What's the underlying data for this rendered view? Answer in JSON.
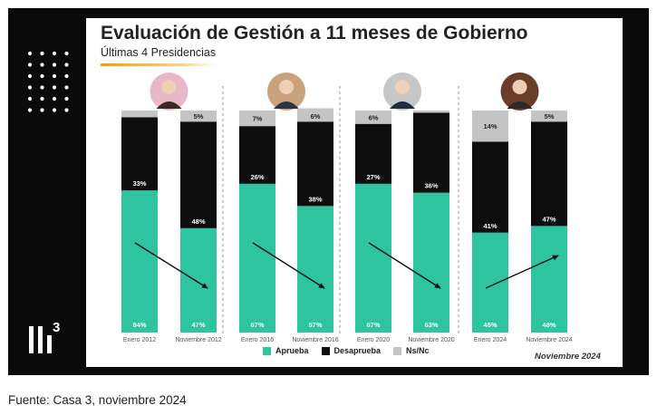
{
  "title": "Evaluación de Gestión a 11 meses de Gobierno",
  "subtitle": "Últimas 4 Presidencias",
  "logo_text": "3",
  "date_note": "Noviembre 2024",
  "source": "Fuente: Casa 3, noviembre 2024",
  "colors": {
    "aprueba": "#2ec4a0",
    "desaprueba": "#0d0d0d",
    "nsnc": "#c4c4c4",
    "frame": "#0a0a0a"
  },
  "legend": [
    {
      "label": "Aprueba",
      "color": "#2ec4a0"
    },
    {
      "label": "Desaprueba",
      "color": "#0d0d0d"
    },
    {
      "label": "Ns/Nc",
      "color": "#c4c4c4"
    }
  ],
  "chart_data": {
    "type": "bar",
    "stacked": true,
    "categories": [
      "Enero 2012",
      "Noviembre 2012",
      "Enero 2016",
      "Noviembre 2016",
      "Enero 2020",
      "Noviembre 2020",
      "Enero 2024",
      "Noviembre 2024"
    ],
    "series": [
      {
        "name": "Aprueba",
        "values": [
          64,
          47,
          67,
          57,
          67,
          63,
          45,
          48
        ]
      },
      {
        "name": "Desaprueba",
        "values": [
          33,
          48,
          26,
          38,
          27,
          36,
          41,
          47
        ]
      },
      {
        "name": "Ns/Nc",
        "values": [
          3,
          5,
          7,
          6,
          6,
          1,
          14,
          5
        ]
      }
    ],
    "labels": {
      "Aprueba": [
        "64%",
        "47%",
        "67%",
        "57%",
        "67%",
        "63%",
        "45%",
        "48%"
      ],
      "Desaprueba": [
        "33%",
        "48%",
        "26%",
        "38%",
        "27%",
        "36%",
        "41%",
        "47%"
      ],
      "Ns/Nc": [
        "",
        "5%",
        "7%",
        "6%",
        "6%",
        "",
        "14%",
        "5%"
      ]
    },
    "trend_arrows": [
      "down",
      "down",
      "down",
      "up"
    ],
    "ylim": [
      0,
      100
    ],
    "grid": false,
    "legend_position": "bottom"
  }
}
